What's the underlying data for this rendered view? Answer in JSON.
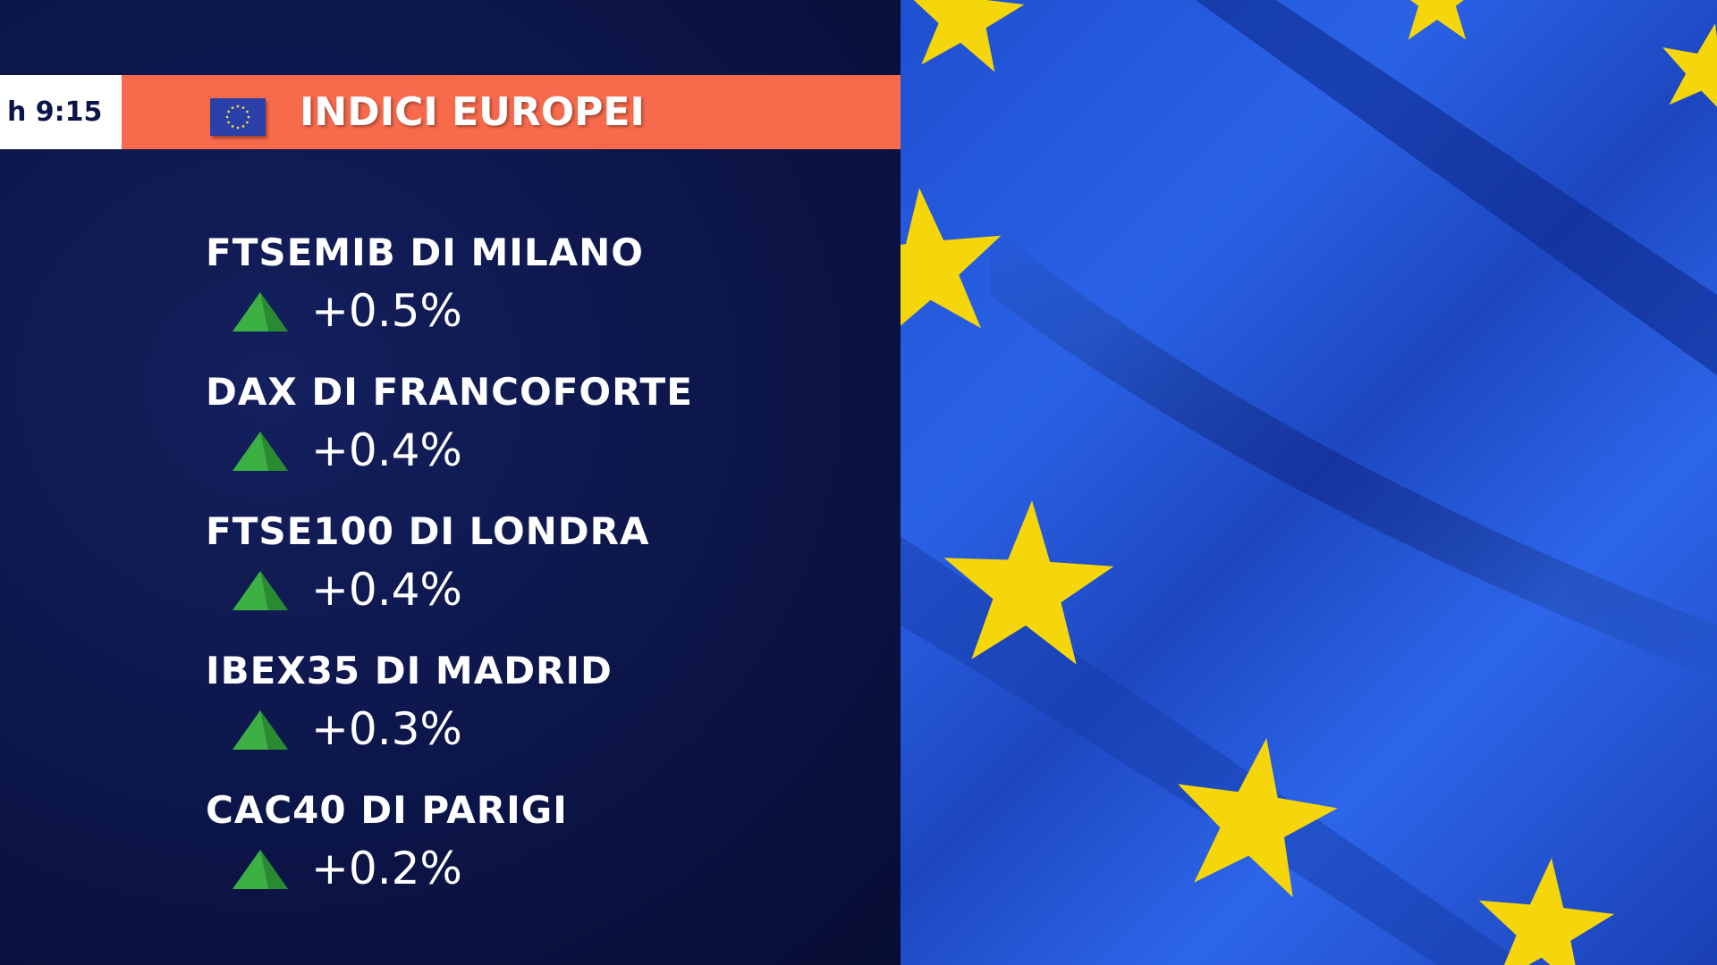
{
  "header": {
    "time": "h 9:15",
    "title": "INDICI EUROPEI",
    "flag_icon": "eu-flag-icon"
  },
  "colors": {
    "band": "#f76a4b",
    "up": "#3cb043",
    "background": "#0c1548",
    "flag_blue": "#2a62e6",
    "star": "#f5d60a"
  },
  "indices": [
    {
      "name": "FTSEMIB DI MILANO",
      "change": "+0.5%",
      "direction": "up"
    },
    {
      "name": "DAX DI FRANCOFORTE",
      "change": "+0.4%",
      "direction": "up"
    },
    {
      "name": "FTSE100 DI LONDRA",
      "change": "+0.4%",
      "direction": "up"
    },
    {
      "name": "IBEX35 DI MADRID",
      "change": "+0.3%",
      "direction": "up"
    },
    {
      "name": "CAC40 DI PARIGI",
      "change": "+0.2%",
      "direction": "up"
    }
  ]
}
